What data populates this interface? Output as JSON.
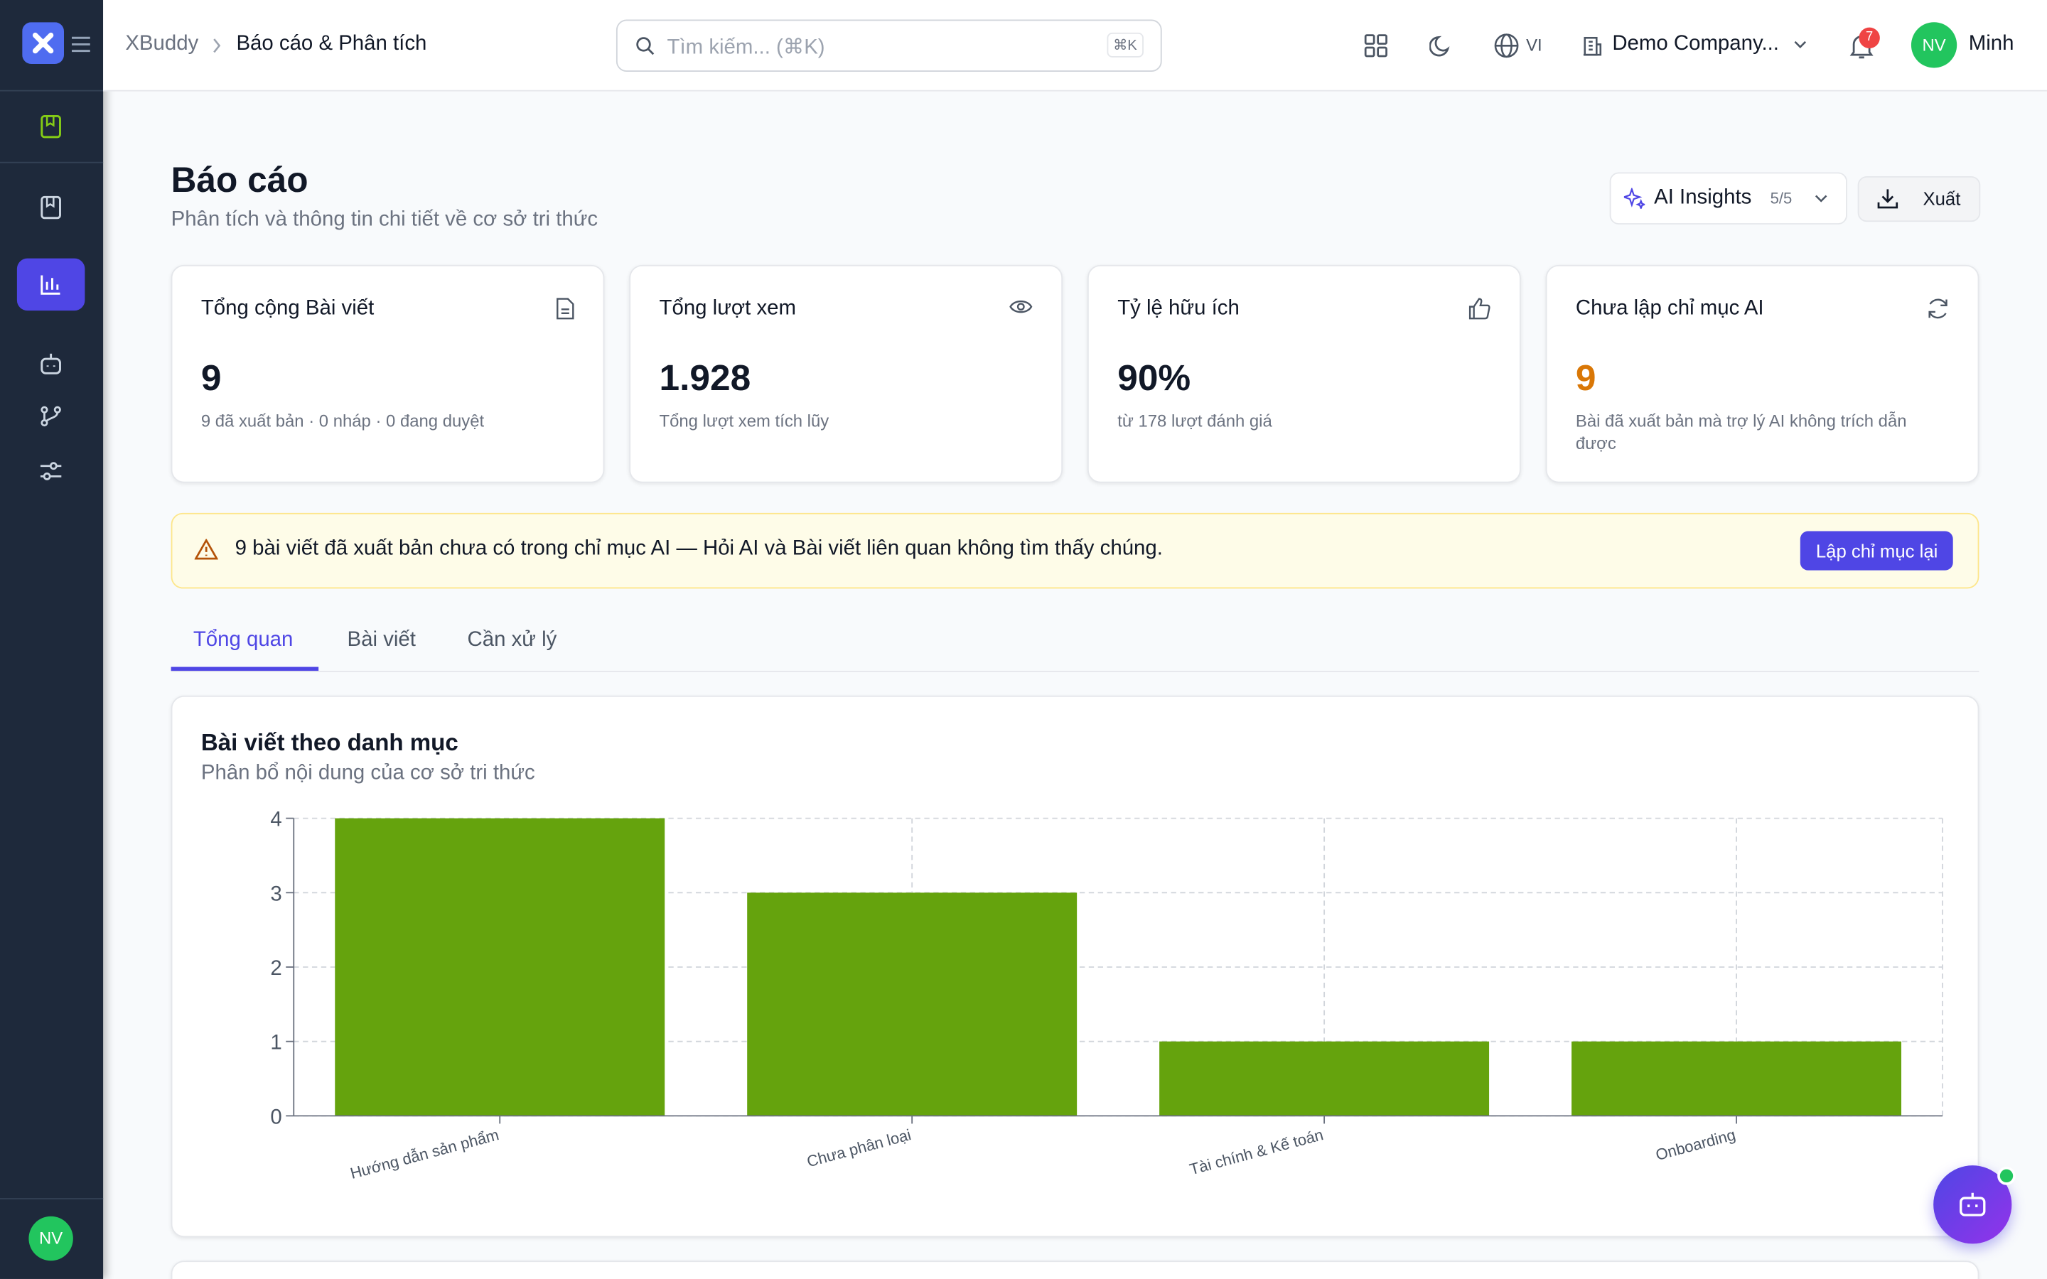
{
  "header": {
    "brand": "XBuddy",
    "breadcrumb": "Báo cáo & Phân tích",
    "search_placeholder": "Tìm kiếm... (⌘K)",
    "search_shortcut": "⌘K",
    "language": "VI",
    "company": "Demo Company...",
    "notifications": "7",
    "user_initials": "NV",
    "user_name": "Minh"
  },
  "sidebar": {
    "user_initials": "NV"
  },
  "page": {
    "title": "Báo cáo",
    "subtitle": "Phân tích và thông tin chi tiết về cơ sở tri thức",
    "ai_insights": "AI Insights",
    "ai_insights_count": "5/5",
    "export": "Xuất"
  },
  "stats": [
    {
      "label": "Tổng cộng Bài viết",
      "value": "9",
      "note": "9 đã xuất bản · 0 nháp · 0 đang duyệt"
    },
    {
      "label": "Tổng lượt xem",
      "value": "1.928",
      "note": "Tổng lượt xem tích lũy"
    },
    {
      "label": "Tỷ lệ hữu ích",
      "value": "90%",
      "note": "từ 178 lượt đánh giá"
    },
    {
      "label": "Chưa lập chỉ mục AI",
      "value": "9",
      "note": "Bài đã xuất bản mà trợ lý AI không trích dẫn được"
    }
  ],
  "alert": {
    "text": "9 bài viết đã xuất bản chưa có trong chỉ mục AI — Hỏi AI và Bài viết liên quan không tìm thấy chúng.",
    "button": "Lập chỉ mục lại"
  },
  "tabs": [
    "Tổng quan",
    "Bài viết",
    "Cần xử lý"
  ],
  "chart": {
    "type": "bar",
    "title": "Bài viết theo danh mục",
    "subtitle": "Phân bổ nội dung của cơ sở tri thức",
    "categories": [
      "Hướng dẫn sản phẩm",
      "Chưa phân loại",
      "Tài chính & Kế toán",
      "Onboarding"
    ],
    "values": [
      4,
      3,
      1,
      1
    ],
    "color": "#65a30d",
    "ylim": [
      0,
      4
    ],
    "yticks": [
      0,
      1,
      2,
      3,
      4
    ],
    "grid": true
  }
}
